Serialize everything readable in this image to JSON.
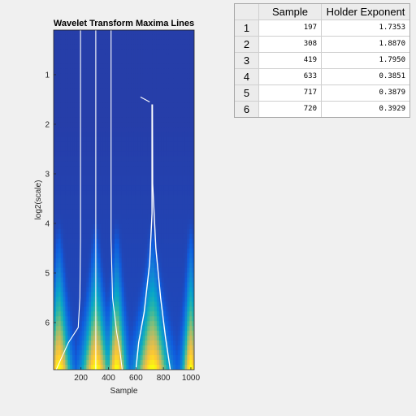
{
  "figure": {
    "title": "Wavelet Transform Maxima Lines",
    "xlabel": "Sample",
    "ylabel": "log2(scale)"
  },
  "chart_data": {
    "type": "heatmap",
    "title": "Wavelet Transform Maxima Lines",
    "xlabel": "Sample",
    "ylabel": "log2(scale)",
    "xlim": [
      1,
      1024
    ],
    "ylim": [
      0.1,
      6.95
    ],
    "y_reversed": true,
    "xticks": [
      200,
      400,
      600,
      800,
      1000
    ],
    "yticks": [
      1,
      2,
      3,
      4,
      5,
      6
    ],
    "colormap": [
      "#352a87",
      "#0f5cdd",
      "#1481d6",
      "#06a4ca",
      "#2eb7a4",
      "#87bf77",
      "#d1bb59",
      "#fec832",
      "#f9fb0e"
    ],
    "energy_centers": [
      {
        "x": 40,
        "max_scale_width": 60
      },
      {
        "x": 308,
        "max_scale_width": 75
      },
      {
        "x": 460,
        "max_scale_width": 50
      },
      {
        "x": 720,
        "max_scale_width": 95
      },
      {
        "x": 1000,
        "max_scale_width": 40
      }
    ],
    "maxima_lines": [
      {
        "points": [
          [
            197,
            0.1
          ],
          [
            197,
            4.3
          ],
          [
            192,
            5.5
          ],
          [
            180,
            6.1
          ],
          [
            110,
            6.4
          ],
          [
            60,
            6.7
          ],
          [
            20,
            6.95
          ]
        ]
      },
      {
        "points": [
          [
            308,
            0.1
          ],
          [
            308,
            6.95
          ]
        ]
      },
      {
        "points": [
          [
            419,
            0.1
          ],
          [
            419,
            4.3
          ],
          [
            430,
            5.5
          ],
          [
            460,
            6.2
          ],
          [
            485,
            6.6
          ],
          [
            500,
            6.95
          ]
        ]
      },
      {
        "points": [
          [
            633,
            1.45
          ],
          [
            700,
            1.55
          ]
        ]
      },
      {
        "points": [
          [
            717,
            1.6
          ],
          [
            717,
            3.8
          ],
          [
            700,
            4.8
          ],
          [
            660,
            5.8
          ],
          [
            620,
            6.4
          ],
          [
            600,
            6.95
          ]
        ]
      },
      {
        "points": [
          [
            720,
            1.6
          ],
          [
            722,
            3.2
          ],
          [
            745,
            4.5
          ],
          [
            780,
            5.5
          ],
          [
            815,
            6.3
          ],
          [
            850,
            6.95
          ]
        ]
      }
    ]
  },
  "table": {
    "headers": [
      "Sample",
      "Holder Exponent"
    ],
    "rows": [
      {
        "index": "1",
        "sample": "197",
        "holder": "1.7353"
      },
      {
        "index": "2",
        "sample": "308",
        "holder": "1.8870"
      },
      {
        "index": "3",
        "sample": "419",
        "holder": "1.7950"
      },
      {
        "index": "4",
        "sample": "633",
        "holder": "0.3851"
      },
      {
        "index": "5",
        "sample": "717",
        "holder": "0.3879"
      },
      {
        "index": "6",
        "sample": "720",
        "holder": "0.3929"
      }
    ]
  }
}
